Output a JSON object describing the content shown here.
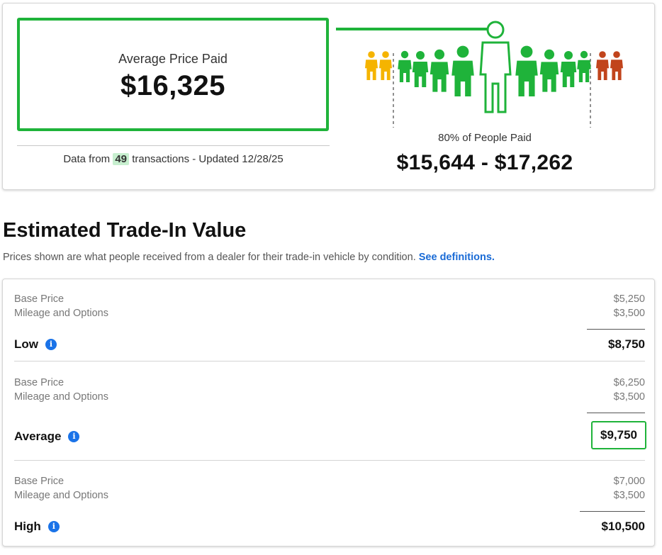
{
  "summary": {
    "avg_label": "Average Price Paid",
    "avg_value": "$16,325",
    "data_from_prefix": "Data from",
    "transaction_count": "49",
    "data_from_suffix": "transactions - Updated 12/28/25",
    "percent_label": "80% of People Paid",
    "range_value": "$15,644 - $17,262",
    "colors": {
      "green": "#1fb33a",
      "low_outlier": "#f5b400",
      "high_outlier": "#c1441c"
    }
  },
  "section": {
    "title": "Estimated Trade-In Value",
    "subtitle": "Prices shown are what people received from a dealer for their trade-in vehicle by condition.",
    "link_text": "See definitions."
  },
  "tiers": [
    {
      "name": "Low",
      "base_label": "Base Price",
      "base_amount": "$5,250",
      "options_label": "Mileage and Options",
      "options_amount": "$3,500",
      "total": "$8,750",
      "info_icon": "info-icon"
    },
    {
      "name": "Average",
      "base_label": "Base Price",
      "base_amount": "$6,250",
      "options_label": "Mileage and Options",
      "options_amount": "$3,500",
      "total": "$9,750",
      "info_icon": "info-icon"
    },
    {
      "name": "High",
      "base_label": "Base Price",
      "base_amount": "$7,000",
      "options_label": "Mileage and Options",
      "options_amount": "$3,500",
      "total": "$10,500",
      "info_icon": "info-icon"
    }
  ]
}
